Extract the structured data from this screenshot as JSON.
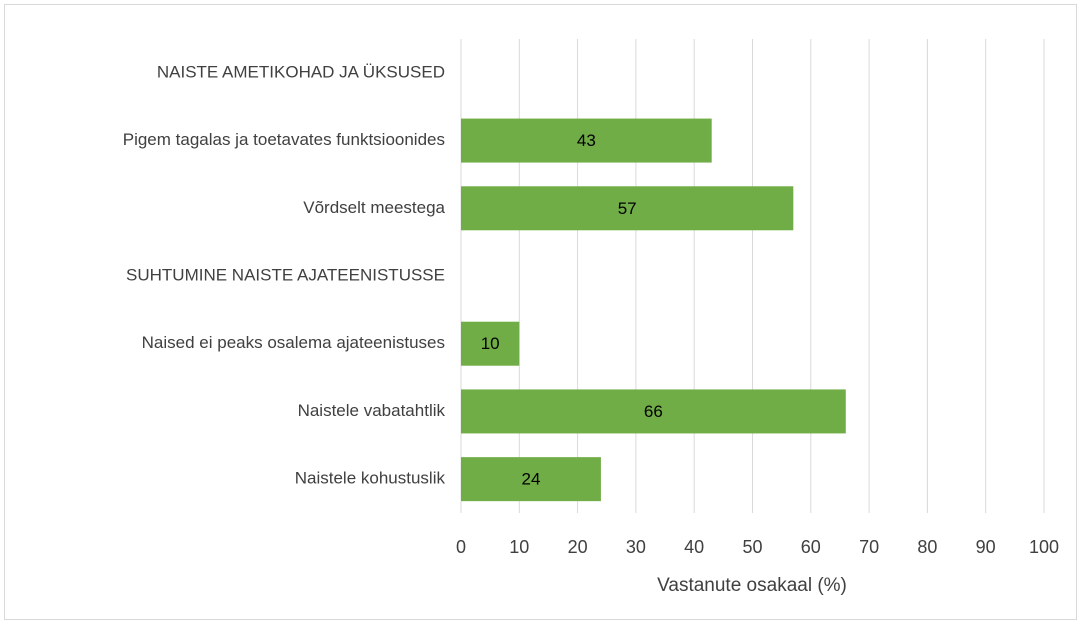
{
  "chart_data": {
    "type": "bar",
    "orientation": "horizontal",
    "categories": [
      "NAISTE AMETIKOHAD JA ÜKSUSED",
      "Pigem tagalas ja toetavates funktsioonides",
      "Võrdselt meestega",
      "SUHTUMINE NAISTE AJATEENISTUSSE",
      "Naised ei peaks osalema ajateenistuses",
      "Naistele vabatahtlik",
      "Naistele kohustuslik"
    ],
    "values": [
      null,
      43,
      57,
      null,
      10,
      66,
      24
    ],
    "color": "#70ad47",
    "xlabel": "Vastanute osakaal (%)",
    "xlim": [
      0,
      100
    ],
    "xticks": [
      0,
      10,
      20,
      30,
      40,
      50,
      60,
      70,
      80,
      90,
      100
    ],
    "grid": true
  }
}
